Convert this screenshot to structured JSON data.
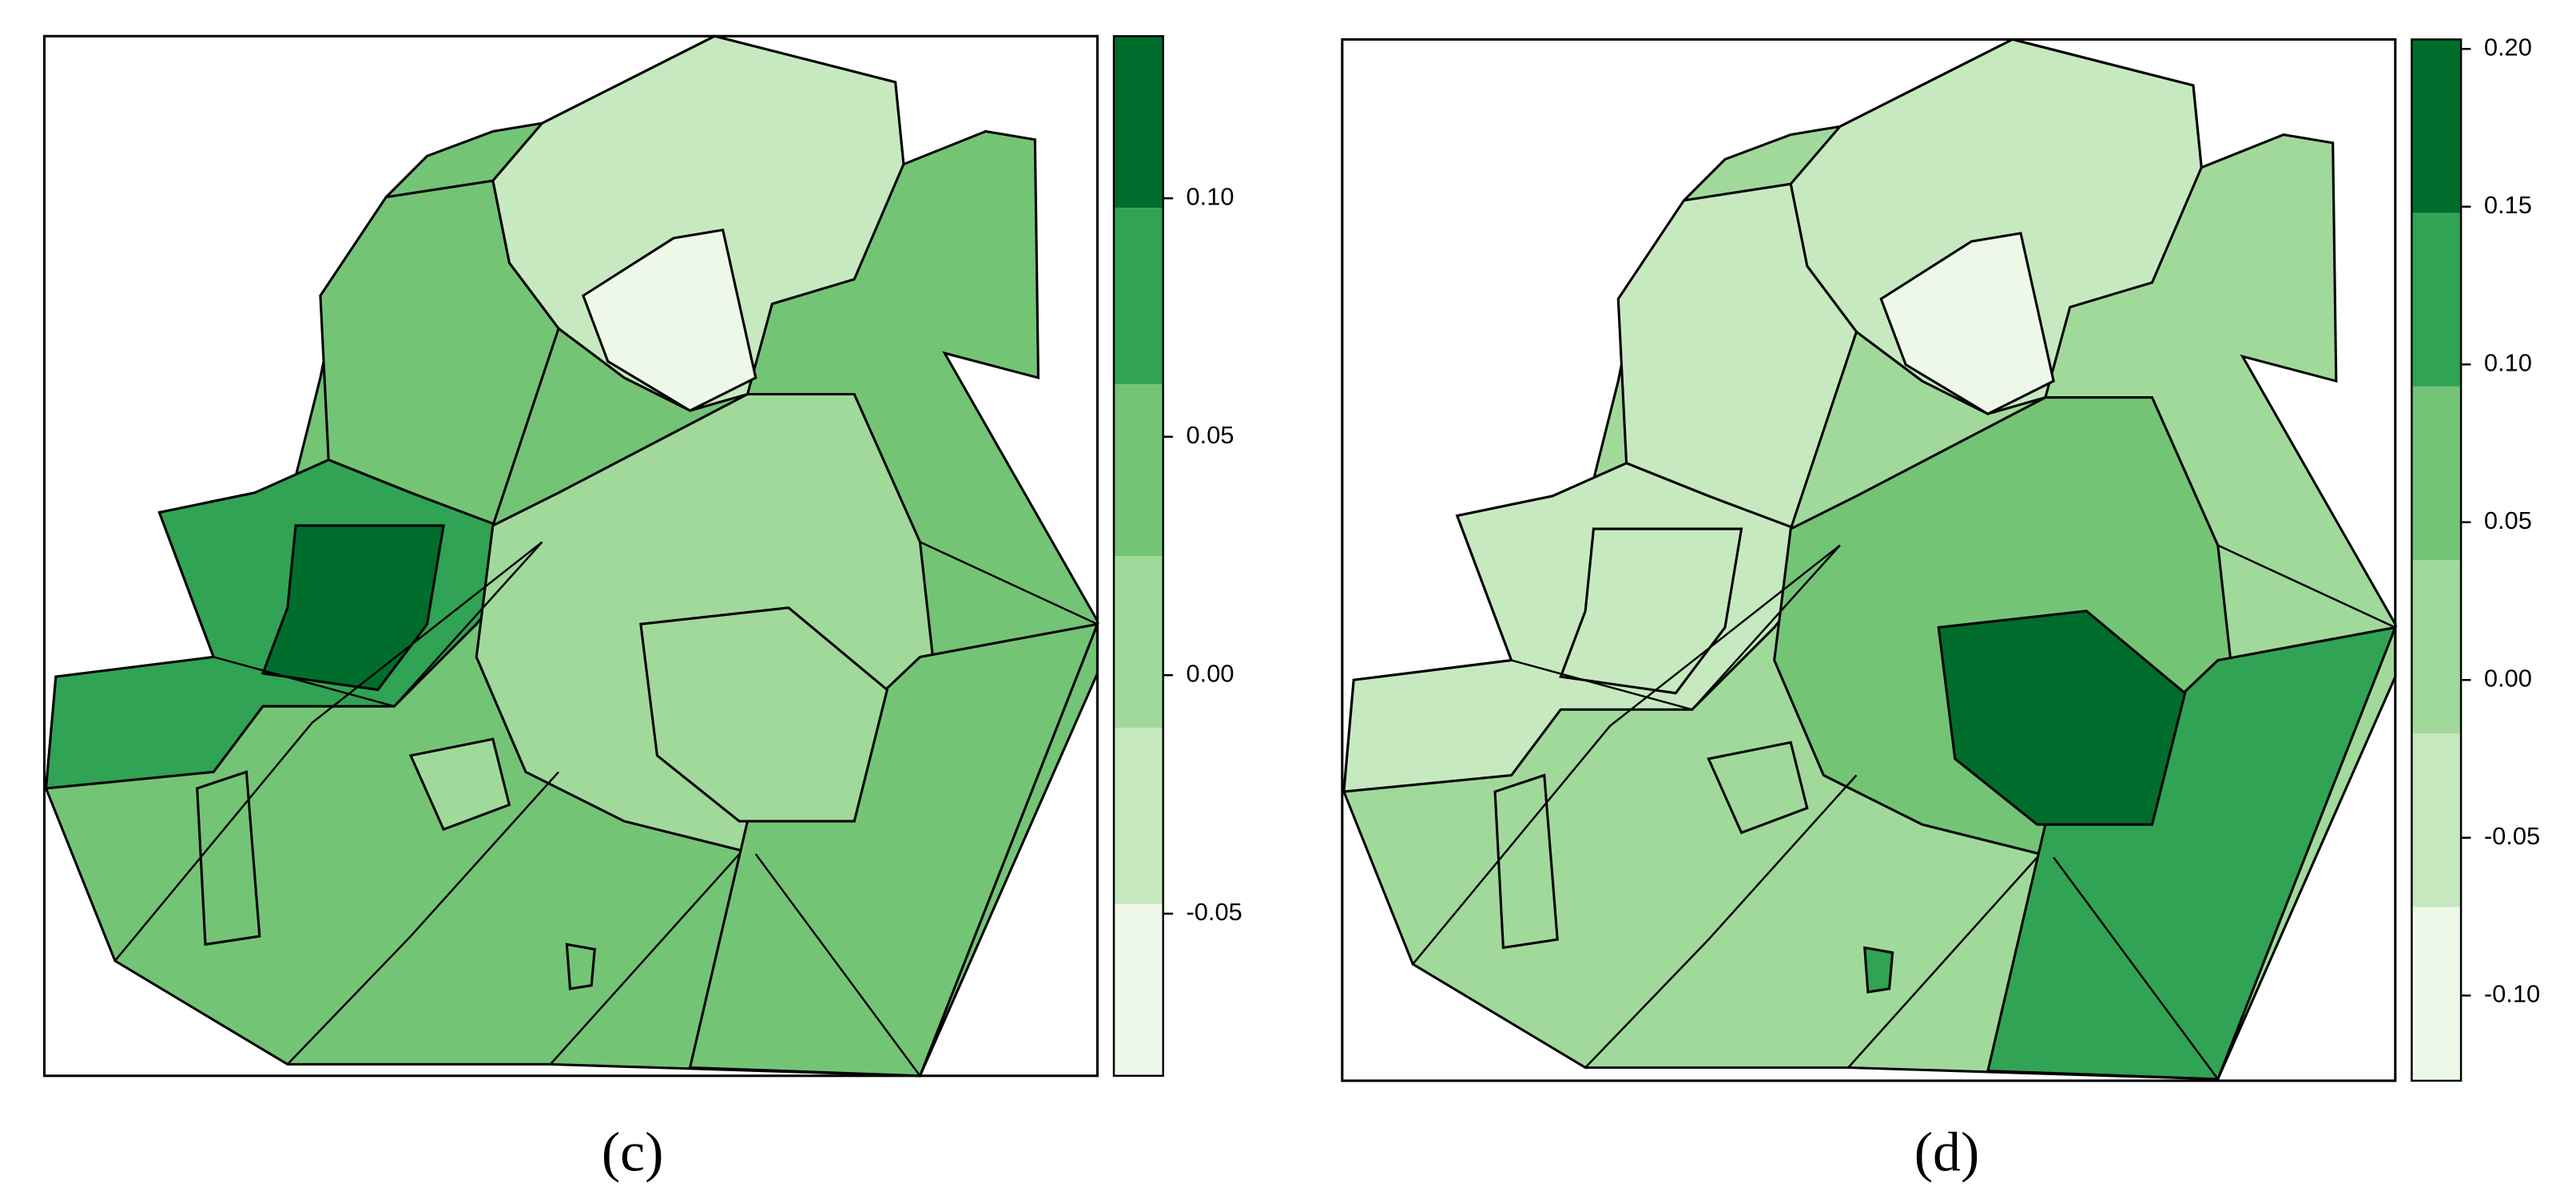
{
  "chart_data": [
    {
      "type": "choropleth",
      "caption": "(c)",
      "colors": [
        "#edf8e9",
        "#c7e9c0",
        "#a1d99b",
        "#74c476",
        "#31a354",
        "#006d2c"
      ],
      "breaks": [
        -0.084,
        -0.048,
        -0.011,
        0.025,
        0.061,
        0.098,
        0.134
      ],
      "ylim": [
        -0.084,
        0.134
      ],
      "yticks": [
        {
          "value": 0.1,
          "label": "0.10"
        },
        0.05,
        {
          "value": 0,
          "label": "0.00"
        },
        -0.05
      ]
    },
    {
      "type": "choropleth",
      "caption": "(d)",
      "colors": [
        "#edf8e9",
        "#c7e9c0",
        "#a1d99b",
        "#74c476",
        "#31a354",
        "#006d2c"
      ],
      "breaks": [
        -0.127,
        -0.072,
        -0.017,
        0.038,
        0.093,
        0.148,
        0.203
      ],
      "ylim": [
        -0.127,
        0.203
      ],
      "yticks": [
        {
          "value": 0.2,
          "label": "0.20"
        },
        0.15,
        {
          "value": 0.1,
          "label": "0.10"
        },
        0.05,
        {
          "value": 0,
          "label": "0.00"
        },
        -0.05,
        {
          "value": -0.1,
          "label": "-0.10"
        }
      ]
    }
  ]
}
